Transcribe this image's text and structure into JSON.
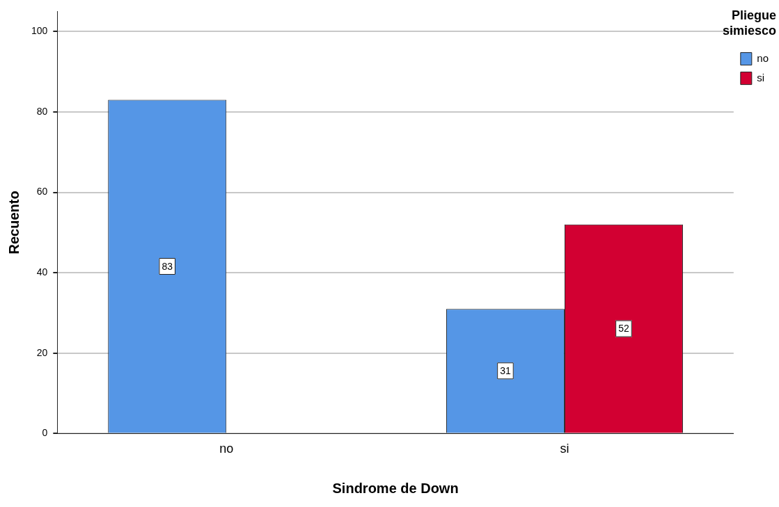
{
  "chart_data": {
    "type": "bar",
    "xlabel": "Sindrome de Down",
    "ylabel": "Recuento",
    "legend_title": "Pliegue simiesco",
    "categories": [
      "no",
      "si"
    ],
    "series": [
      {
        "name": "no",
        "color": "#5596e6",
        "values": [
          83,
          31
        ]
      },
      {
        "name": "si",
        "color": "#d20032",
        "values": [
          null,
          52
        ]
      }
    ],
    "ylim": [
      0,
      105
    ],
    "yticks": [
      0,
      20,
      40,
      60,
      80,
      100
    ],
    "grid": "y",
    "legend": "top right",
    "data_labels": true
  }
}
